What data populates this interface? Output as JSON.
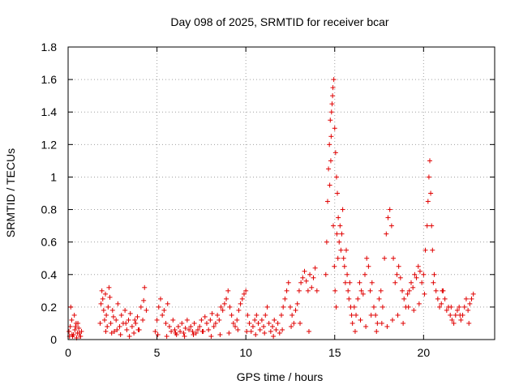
{
  "chart_data": {
    "type": "scatter",
    "title": "Day 098 of 2025, SRMTID for receiver bcar",
    "xlabel": "GPS time / hours",
    "ylabel": "SRMTID / TECUs",
    "xlim": [
      0,
      24
    ],
    "ylim": [
      0,
      1.8
    ],
    "xticks": [
      0,
      5,
      10,
      15,
      20
    ],
    "xtick_labels": [
      "0",
      "5",
      "10",
      "15",
      "20"
    ],
    "yticks": [
      0,
      0.2,
      0.4,
      0.6,
      0.8,
      1.0,
      1.2,
      1.4,
      1.6,
      1.8
    ],
    "ytick_labels": [
      "0",
      "0.2",
      "0.4",
      "0.6",
      "0.8",
      "1",
      "1.2",
      "1.4",
      "1.6",
      "1.8"
    ],
    "grid": true,
    "marker": "plus",
    "color": "#e00000",
    "series": [
      {
        "name": "SRMTID",
        "x": [
          0.05,
          0.12,
          0.2,
          0.3,
          0.38,
          0.45,
          0.52,
          0.6,
          0.68,
          0.75,
          0.15,
          0.35,
          0.55,
          0.25,
          0.42,
          0.62,
          1.8,
          1.85,
          1.9,
          1.95,
          2.0,
          2.05,
          2.1,
          2.15,
          2.2,
          2.25,
          2.3,
          2.4,
          2.5,
          2.6,
          2.7,
          2.8,
          2.9,
          3.0,
          3.1,
          3.2,
          3.3,
          3.4,
          3.5,
          3.6,
          3.7,
          3.8,
          3.9,
          4.0,
          4.1,
          4.2,
          4.3,
          4.4,
          2.35,
          2.55,
          2.75,
          3.25,
          3.75,
          4.25,
          4.9,
          5.0,
          5.1,
          5.2,
          5.3,
          5.4,
          5.5,
          5.6,
          5.7,
          5.8,
          5.9,
          6.0,
          6.1,
          6.2,
          6.3,
          6.4,
          6.5,
          6.6,
          6.7,
          6.8,
          6.9,
          7.0,
          7.1,
          7.2,
          7.3,
          7.4,
          7.5,
          7.6,
          7.7,
          7.8,
          7.9,
          8.0,
          8.1,
          8.2,
          8.3,
          8.4,
          8.5,
          8.6,
          8.7,
          8.8,
          8.9,
          9.0,
          9.1,
          9.2,
          9.3,
          9.4,
          9.5,
          9.6,
          9.7,
          9.8,
          9.9,
          10.0,
          10.1,
          10.2,
          10.3,
          10.4,
          10.5,
          10.6,
          10.7,
          10.8,
          10.9,
          11.0,
          11.1,
          11.2,
          11.3,
          11.4,
          11.5,
          11.6,
          11.7,
          11.8,
          11.9,
          12.0,
          12.1,
          12.2,
          12.3,
          12.4,
          12.5,
          12.6,
          12.7,
          12.8,
          12.9,
          13.0,
          13.1,
          13.2,
          13.3,
          13.4,
          13.5,
          13.6,
          13.7,
          13.8,
          13.9,
          14.0,
          14.5,
          14.55,
          14.6,
          14.65,
          14.7,
          14.75,
          14.8,
          14.85,
          14.9,
          14.95,
          15.0,
          15.05,
          15.1,
          15.15,
          15.2,
          15.25,
          15.3,
          15.35,
          15.4,
          15.45,
          15.5,
          15.55,
          15.6,
          15.65,
          15.7,
          15.75,
          15.8,
          15.85,
          15.9,
          15.95,
          14.72,
          14.78,
          14.82,
          14.88,
          14.92,
          14.98,
          15.02,
          15.08,
          15.12,
          15.18,
          16.0,
          16.1,
          16.2,
          16.3,
          16.4,
          16.5,
          16.6,
          16.7,
          16.8,
          16.9,
          17.0,
          17.1,
          17.2,
          17.3,
          17.4,
          17.5,
          17.6,
          17.7,
          17.8,
          17.9,
          18.0,
          18.1,
          18.2,
          18.3,
          18.4,
          18.5,
          18.6,
          18.7,
          18.8,
          18.9,
          19.0,
          19.1,
          19.2,
          19.3,
          19.4,
          19.5,
          19.6,
          19.7,
          19.8,
          19.9,
          20.0,
          20.1,
          20.2,
          20.25,
          20.3,
          20.35,
          20.4,
          20.45,
          20.5,
          20.6,
          20.7,
          20.8,
          20.9,
          21.0,
          21.1,
          21.2,
          21.3,
          21.4,
          21.5,
          21.6,
          21.7,
          21.8,
          21.9,
          22.0,
          22.1,
          22.2,
          22.3,
          22.4,
          22.5,
          22.6,
          22.7,
          22.8,
          16.15,
          16.45,
          16.75,
          17.05,
          17.35,
          17.65,
          17.95,
          18.25,
          18.55,
          18.85,
          19.15,
          19.45,
          19.75,
          20.05,
          20.55,
          21.05,
          21.55,
          22.05,
          22.55,
          0.08,
          0.22,
          0.48,
          0.7,
          2.12,
          2.45,
          2.95,
          3.45,
          3.95,
          5.05,
          5.55,
          6.05,
          6.55,
          7.05,
          7.55,
          8.05,
          8.55,
          9.05,
          9.55,
          10.05,
          10.55,
          11.05,
          11.55,
          12.05,
          12.55,
          13.05,
          13.55
        ],
        "y": [
          0.05,
          0.08,
          0.12,
          0.03,
          0.06,
          0.1,
          0.04,
          0.07,
          0.02,
          0.05,
          0.2,
          0.15,
          0.1,
          0.02,
          0.08,
          0.04,
          0.1,
          0.22,
          0.3,
          0.25,
          0.18,
          0.12,
          0.28,
          0.15,
          0.08,
          0.2,
          0.32,
          0.1,
          0.18,
          0.05,
          0.12,
          0.22,
          0.08,
          0.15,
          0.1,
          0.18,
          0.06,
          0.12,
          0.16,
          0.08,
          0.04,
          0.1,
          0.14,
          0.06,
          0.2,
          0.12,
          0.32,
          0.18,
          0.26,
          0.14,
          0.06,
          0.1,
          0.12,
          0.24,
          0.05,
          0.12,
          0.2,
          0.25,
          0.15,
          0.18,
          0.1,
          0.22,
          0.08,
          0.05,
          0.12,
          0.06,
          0.03,
          0.08,
          0.05,
          0.1,
          0.04,
          0.07,
          0.12,
          0.06,
          0.08,
          0.05,
          0.1,
          0.04,
          0.06,
          0.08,
          0.12,
          0.05,
          0.14,
          0.1,
          0.06,
          0.12,
          0.16,
          0.08,
          0.1,
          0.15,
          0.12,
          0.2,
          0.18,
          0.22,
          0.25,
          0.3,
          0.2,
          0.15,
          0.1,
          0.08,
          0.12,
          0.18,
          0.22,
          0.25,
          0.28,
          0.3,
          0.15,
          0.1,
          0.05,
          0.08,
          0.12,
          0.15,
          0.1,
          0.06,
          0.12,
          0.08,
          0.15,
          0.2,
          0.1,
          0.05,
          0.08,
          0.12,
          0.06,
          0.1,
          0.04,
          0.15,
          0.2,
          0.25,
          0.3,
          0.35,
          0.2,
          0.15,
          0.1,
          0.18,
          0.22,
          0.3,
          0.35,
          0.38,
          0.42,
          0.36,
          0.3,
          0.4,
          0.32,
          0.38,
          0.44,
          0.3,
          0.4,
          0.6,
          0.85,
          1.05,
          1.2,
          1.35,
          1.25,
          1.45,
          1.55,
          1.6,
          1.3,
          1.15,
          1.0,
          0.9,
          0.75,
          0.6,
          0.7,
          0.55,
          0.65,
          0.8,
          0.5,
          0.45,
          0.35,
          0.55,
          0.4,
          0.3,
          0.25,
          0.35,
          0.2,
          0.15,
          0.95,
          1.1,
          1.4,
          1.5,
          0.7,
          0.45,
          0.3,
          0.2,
          0.65,
          0.5,
          0.1,
          0.2,
          0.15,
          0.25,
          0.35,
          0.3,
          0.28,
          0.4,
          0.5,
          0.45,
          0.3,
          0.35,
          0.2,
          0.15,
          0.1,
          0.25,
          0.3,
          0.2,
          0.5,
          0.65,
          0.75,
          0.8,
          0.7,
          0.5,
          0.35,
          0.4,
          0.45,
          0.38,
          0.3,
          0.25,
          0.2,
          0.28,
          0.3,
          0.35,
          0.32,
          0.4,
          0.38,
          0.45,
          0.42,
          0.35,
          0.4,
          0.55,
          0.7,
          0.85,
          1.0,
          1.1,
          0.9,
          0.7,
          0.55,
          0.4,
          0.3,
          0.25,
          0.2,
          0.22,
          0.3,
          0.25,
          0.18,
          0.2,
          0.15,
          0.12,
          0.1,
          0.15,
          0.18,
          0.2,
          0.12,
          0.15,
          0.2,
          0.25,
          0.18,
          0.22,
          0.25,
          0.28,
          0.05,
          0.12,
          0.08,
          0.15,
          0.05,
          0.1,
          0.08,
          0.12,
          0.15,
          0.1,
          0.2,
          0.18,
          0.22,
          0.28,
          0.35,
          0.3,
          0.2,
          0.15,
          0.1,
          0.02,
          0.03,
          0.01,
          0.02,
          0.05,
          0.04,
          0.03,
          0.02,
          0.06,
          0.03,
          0.02,
          0.04,
          0.02,
          0.03,
          0.05,
          0.02,
          0.03,
          0.04,
          0.06,
          0.05,
          0.03,
          0.04,
          0.02,
          0.06,
          0.08,
          0.1,
          0.05
        ]
      }
    ]
  }
}
